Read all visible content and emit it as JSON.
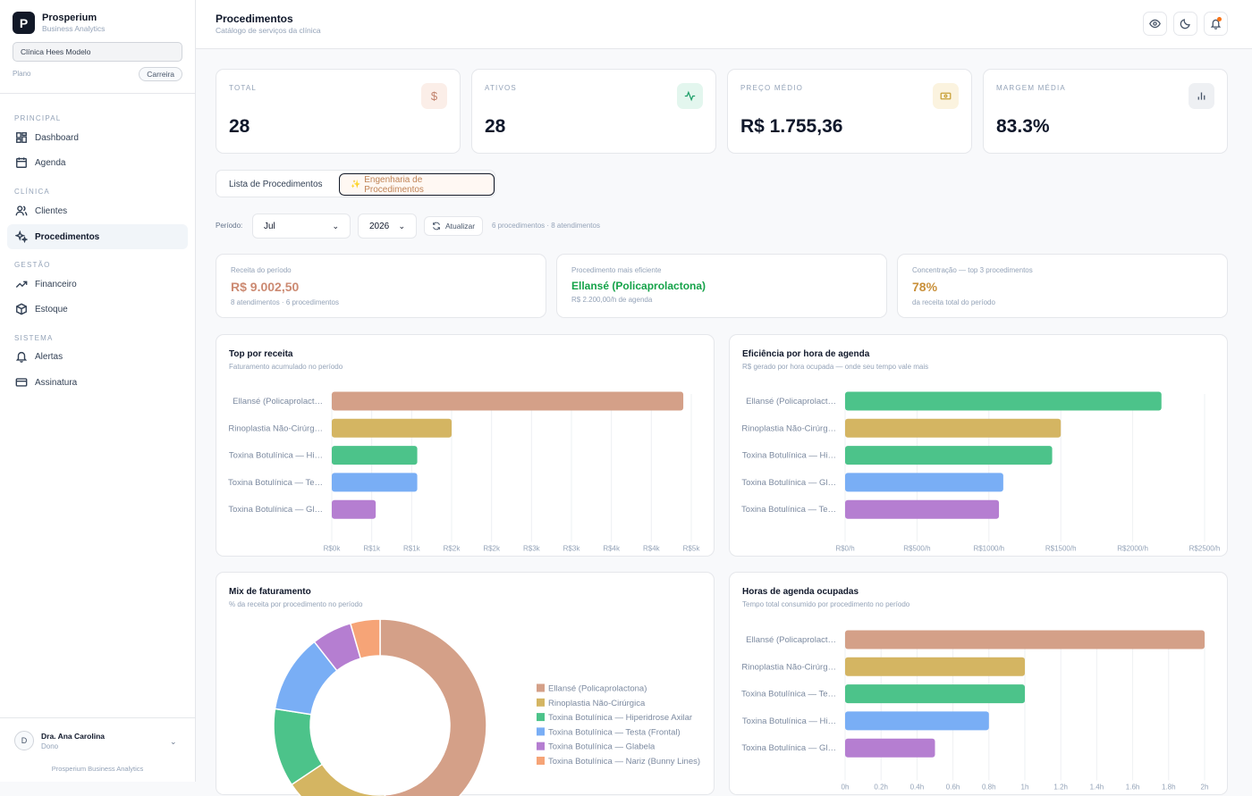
{
  "brand": {
    "logo_letter": "P",
    "name": "Prosperium",
    "sub": "Business Analytics"
  },
  "clinic": "Clínica Hees Modelo",
  "plan": {
    "label": "Plano",
    "badge": "Carreira"
  },
  "nav": {
    "sections": [
      "PRINCIPAL",
      "CLÍNICA",
      "GESTÃO",
      "SISTEMA"
    ],
    "dashboard": "Dashboard",
    "agenda": "Agenda",
    "clientes": "Clientes",
    "procedimentos": "Procedimentos",
    "financeiro": "Financeiro",
    "estoque": "Estoque",
    "alertas": "Alertas",
    "assinatura": "Assinatura"
  },
  "user": {
    "initial": "D",
    "name": "Dra. Ana Carolina",
    "role": "Dono"
  },
  "footer": "Prosperium Business Analytics",
  "header": {
    "title": "Procedimentos",
    "subtitle": "Catálogo de serviços da clínica"
  },
  "kpis": [
    {
      "label": "TOTAL",
      "value": "28",
      "icon": "dollar-icon",
      "color": "#c0806a",
      "bg": "#fbeee8"
    },
    {
      "label": "ATIVOS",
      "value": "28",
      "icon": "activity-icon",
      "color": "#22a06b",
      "bg": "#e3f6ee"
    },
    {
      "label": "PREÇO MÉDIO",
      "value": "R$ 1.755,36",
      "icon": "banknote-icon",
      "color": "#c9a23a",
      "bg": "#fbf3df"
    },
    {
      "label": "MARGEM MÉDIA",
      "value": "83.3%",
      "icon": "bar-chart-icon",
      "color": "#475569",
      "bg": "#eef0f3"
    }
  ],
  "tabs": {
    "list": "Lista de Procedimentos",
    "engineering": "Engenharia de Procedimentos",
    "engineering_icon": "✨"
  },
  "controls": {
    "period_label": "Período:",
    "month": "Jul",
    "year": "2026",
    "refresh": "Atualizar",
    "info": "6 procedimentos · 8 atendimentos"
  },
  "summary": [
    {
      "label": "Receita do período",
      "value": "R$ 9.002,50",
      "sub": "8 atendimentos · 6 procedimentos",
      "color": "#cc8a72"
    },
    {
      "label": "Procedimento mais eficiente",
      "value": "Ellansé (Policaprolactona)",
      "sub": "R$ 2.200,00/h de agenda",
      "color": "#16a34a"
    },
    {
      "label": "Concentração — top 3 procedimentos",
      "value": "78%",
      "sub": "da receita total do período",
      "color": "#c9903a"
    }
  ],
  "charts": {
    "revenue": {
      "title": "Top por receita",
      "subtitle": "Faturamento acumulado no período"
    },
    "efficiency": {
      "title": "Eficiência por hora de agenda",
      "subtitle": "R$ gerado por hora ocupada — onde seu tempo vale mais"
    },
    "mix": {
      "title": "Mix de faturamento",
      "subtitle": "% da receita por procedimento no período"
    },
    "hours": {
      "title": "Horas de agenda ocupadas",
      "subtitle": "Tempo total consumido por procedimento no período"
    }
  },
  "chart_data": [
    {
      "type": "bar",
      "orientation": "horizontal",
      "categories": [
        "Ellansé (Policaprolact…",
        "Rinoplastia Não-Cirúrg…",
        "Toxina Botulínica — Hi…",
        "Toxina Botulínica — Te…",
        "Toxina Botulínica — Gl…"
      ],
      "values": [
        4400,
        1500,
        1070,
        1070,
        550
      ],
      "colors": [
        "#d4a088",
        "#d4b562",
        "#4cc38a",
        "#79aef5",
        "#b57ed1"
      ],
      "ticks": [
        "R$0k",
        "R$1k",
        "R$1k",
        "R$2k",
        "R$2k",
        "R$3k",
        "R$3k",
        "R$4k",
        "R$4k",
        "R$5k"
      ],
      "xlim": [
        0,
        4500
      ]
    },
    {
      "type": "bar",
      "orientation": "horizontal",
      "categories": [
        "Ellansé (Policaprolact…",
        "Rinoplastia Não-Cirúrg…",
        "Toxina Botulínica — Hi…",
        "Toxina Botulínica — Gl…",
        "Toxina Botulínica — Te…"
      ],
      "values": [
        2200,
        1500,
        1440,
        1100,
        1070
      ],
      "colors": [
        "#4cc38a",
        "#d4b562",
        "#4cc38a",
        "#79aef5",
        "#b57ed1"
      ],
      "ticks": [
        "R$0/h",
        "R$500/h",
        "R$1000/h",
        "R$1500/h",
        "R$2000/h",
        "R$2500/h"
      ],
      "xlim": [
        0,
        2500
      ]
    },
    {
      "type": "pie",
      "donut": true,
      "labels": [
        "Ellansé (Policaprolactona)",
        "Rinoplastia Não-Cirúrgica",
        "Toxina Botulínica — Hiperidrose Axilar",
        "Toxina Botulínica — Testa (Frontal)",
        "Toxina Botulínica — Glabela",
        "Toxina Botulínica — Nariz (Bunny Lines)"
      ],
      "values": [
        48.9,
        16.7,
        11.9,
        11.9,
        6.1,
        4.5
      ],
      "colors": [
        "#d4a088",
        "#d4b562",
        "#4cc38a",
        "#79aef5",
        "#b57ed1",
        "#f6a477"
      ]
    },
    {
      "type": "bar",
      "orientation": "horizontal",
      "categories": [
        "Ellansé (Policaprolact…",
        "Rinoplastia Não-Cirúrg…",
        "Toxina Botulínica — Te…",
        "Toxina Botulínica — Hi…",
        "Toxina Botulínica — Gl…"
      ],
      "values": [
        2,
        1,
        1,
        0.8,
        0.5
      ],
      "colors": [
        "#d4a088",
        "#d4b562",
        "#4cc38a",
        "#79aef5",
        "#b57ed1"
      ],
      "ticks": [
        "0h",
        "0.2h",
        "0.4h",
        "0.6h",
        "0.8h",
        "1h",
        "1.2h",
        "1.4h",
        "1.6h",
        "1.8h",
        "2h"
      ],
      "xlim": [
        0,
        2
      ]
    }
  ]
}
